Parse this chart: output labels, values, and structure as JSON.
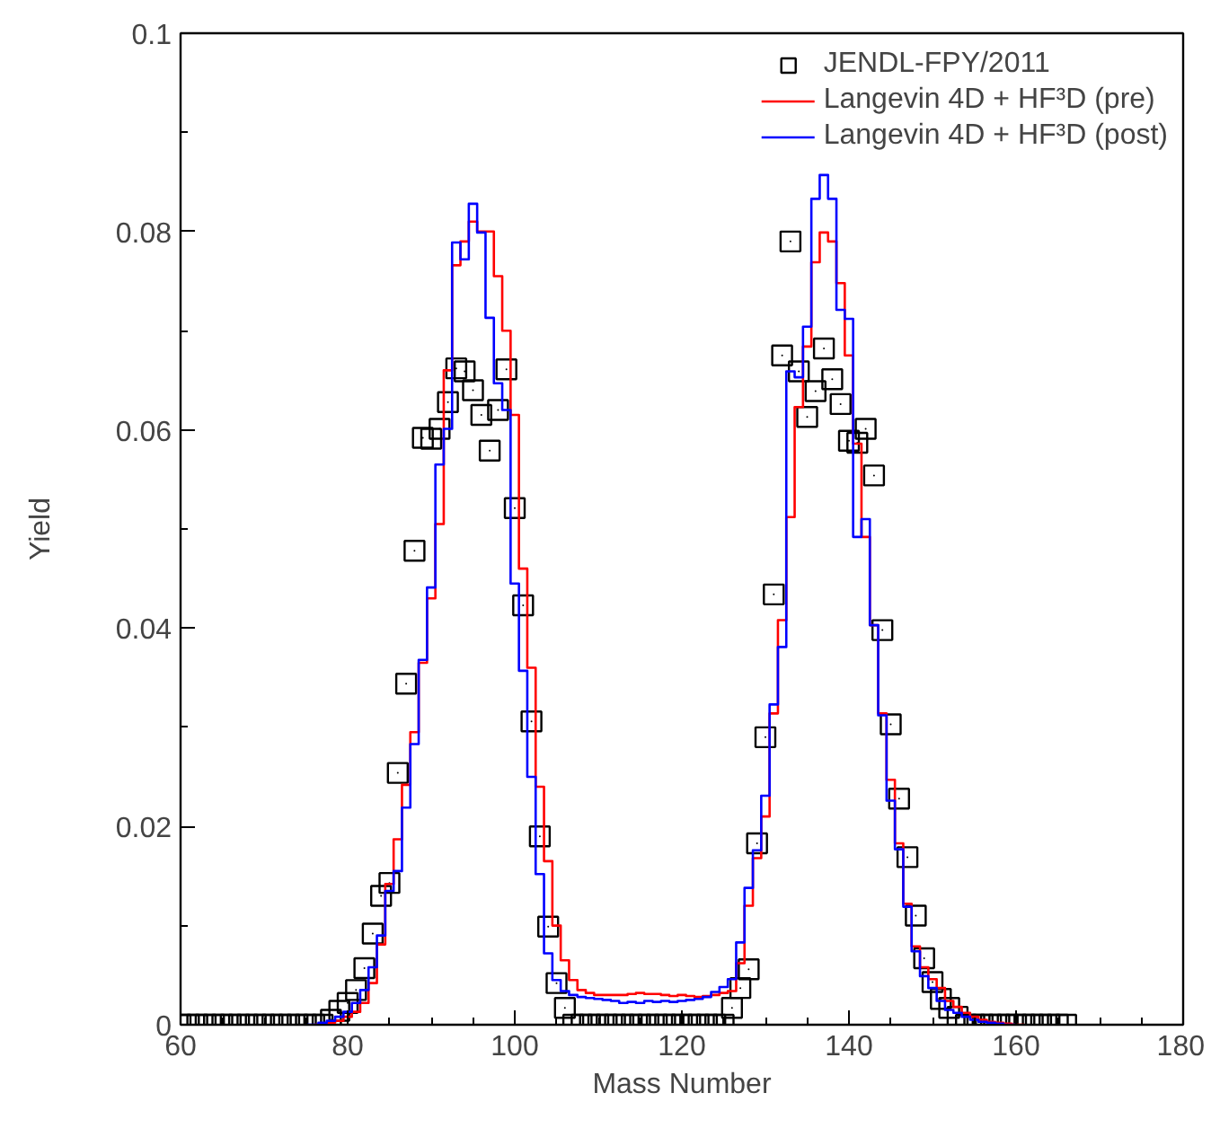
{
  "chart_data": {
    "type": "step",
    "xlabel": "Mass Number",
    "ylabel": "Yield",
    "xlim": [
      60,
      180
    ],
    "ylim": [
      0,
      0.1
    ],
    "xticks": [
      60,
      80,
      100,
      120,
      140,
      160,
      180
    ],
    "yticks": [
      0,
      0.02,
      0.04,
      0.06,
      0.08,
      0.1
    ],
    "grid": false,
    "legend": "top right",
    "series": [
      {
        "name": "JENDL-FPY/2011",
        "type": "scatter",
        "marker": "square",
        "color": "#000000",
        "x": [
          60,
          61,
          62,
          63,
          64,
          65,
          66,
          67,
          68,
          69,
          70,
          71,
          72,
          73,
          74,
          75,
          76,
          77,
          78,
          79,
          80,
          81,
          82,
          83,
          84,
          85,
          86,
          87,
          88,
          89,
          90,
          91,
          92,
          93,
          94,
          95,
          96,
          97,
          98,
          99,
          100,
          101,
          102,
          103,
          104,
          105,
          106,
          107,
          108,
          109,
          110,
          111,
          112,
          113,
          114,
          115,
          116,
          117,
          118,
          119,
          120,
          121,
          122,
          123,
          124,
          125,
          126,
          127,
          128,
          129,
          130,
          131,
          132,
          133,
          134,
          135,
          136,
          137,
          138,
          139,
          140,
          141,
          142,
          143,
          144,
          145,
          146,
          147,
          148,
          149,
          150,
          151,
          152,
          153,
          154,
          155,
          156,
          157,
          158,
          159,
          160,
          161,
          162,
          163,
          164,
          165,
          166
        ],
        "values": [
          0,
          0,
          0,
          0,
          0,
          0,
          0,
          0,
          0,
          0,
          0,
          0,
          0,
          0,
          0,
          0,
          0,
          0,
          0.0005,
          0.0014,
          0.0022,
          0.0035,
          0.0057,
          0.0092,
          0.013,
          0.0143,
          0.0254,
          0.0344,
          0.0478,
          0.0592,
          0.0591,
          0.0601,
          0.0628,
          0.0662,
          0.0659,
          0.064,
          0.0615,
          0.0579,
          0.062,
          0.0661,
          0.0521,
          0.0423,
          0.0306,
          0.019,
          0.0099,
          0.0042,
          0.0017,
          0,
          0,
          0,
          0,
          0,
          0,
          0,
          0,
          0,
          0,
          0,
          0,
          0,
          0,
          0,
          0,
          0,
          0,
          0,
          0.0017,
          0.0037,
          0.0056,
          0.0183,
          0.029,
          0.0434,
          0.0675,
          0.079,
          0.0659,
          0.0613,
          0.0639,
          0.0682,
          0.0651,
          0.0626,
          0.0589,
          0.0587,
          0.0601,
          0.0554,
          0.0398,
          0.0303,
          0.0228,
          0.0169,
          0.011,
          0.0067,
          0.0043,
          0.0026,
          0.0017,
          0.0008,
          0,
          0,
          0,
          0,
          0,
          0,
          0,
          0,
          0,
          0,
          0,
          0,
          0
        ]
      },
      {
        "name": "Langevin 4D + HF³D (pre)",
        "color": "#ff0000",
        "x": [
          76,
          77,
          78,
          79,
          80,
          81,
          82,
          83,
          84,
          85,
          86,
          87,
          88,
          89,
          90,
          91,
          92,
          93,
          94,
          95,
          96,
          97,
          98,
          99,
          100,
          101,
          102,
          103,
          104,
          105,
          106,
          107,
          108,
          109,
          110,
          111,
          112,
          113,
          114,
          115,
          116,
          117,
          118,
          119,
          120,
          121,
          122,
          123,
          124,
          125,
          126,
          127,
          128,
          129,
          130,
          131,
          132,
          133,
          134,
          135,
          136,
          137,
          138,
          139,
          140,
          141,
          142,
          143,
          144,
          145,
          146,
          147,
          148,
          149,
          150,
          151,
          152,
          153,
          154,
          155,
          156,
          157,
          158,
          159,
          160,
          161
        ],
        "values": [
          0,
          0,
          0.0002,
          0.0004,
          0.0008,
          0.0013,
          0.0022,
          0.0042,
          0.0081,
          0.0142,
          0.0187,
          0.0242,
          0.0295,
          0.0365,
          0.043,
          0.0505,
          0.066,
          0.0766,
          0.079,
          0.081,
          0.08,
          0.08,
          0.0755,
          0.07,
          0.0615,
          0.046,
          0.036,
          0.024,
          0.0165,
          0.01,
          0.0065,
          0.0045,
          0.0035,
          0.0032,
          0.003,
          0.003,
          0.003,
          0.003,
          0.0031,
          0.0032,
          0.0031,
          0.0031,
          0.003,
          0.0029,
          0.003,
          0.0029,
          0.0028,
          0.0029,
          0.003,
          0.0032,
          0.0034,
          0.0062,
          0.012,
          0.0168,
          0.021,
          0.0314,
          0.0408,
          0.0512,
          0.0623,
          0.0684,
          0.0769,
          0.0799,
          0.079,
          0.0748,
          0.0675,
          0.0586,
          0.0492,
          0.0403,
          0.0314,
          0.0247,
          0.0183,
          0.0122,
          0.0079,
          0.0058,
          0.0046,
          0.0037,
          0.0024,
          0.0018,
          0.0012,
          0.0008,
          0.0005,
          0.0003,
          0.0002,
          0.0001,
          0,
          0
        ]
      },
      {
        "name": "Langevin 4D + HF³D (post)",
        "color": "#0000ff",
        "x": [
          75,
          76,
          77,
          78,
          79,
          80,
          81,
          82,
          83,
          84,
          85,
          86,
          87,
          88,
          89,
          90,
          91,
          92,
          93,
          94,
          95,
          96,
          97,
          98,
          99,
          100,
          101,
          102,
          103,
          104,
          105,
          106,
          107,
          108,
          109,
          110,
          111,
          112,
          113,
          114,
          115,
          116,
          117,
          118,
          119,
          120,
          121,
          122,
          123,
          124,
          125,
          126,
          127,
          128,
          129,
          130,
          131,
          132,
          133,
          134,
          135,
          136,
          137,
          138,
          139,
          140,
          141,
          142,
          143,
          144,
          145,
          146,
          147,
          148,
          149,
          150,
          151,
          152,
          153,
          154,
          155,
          156,
          157,
          158,
          159,
          160
        ],
        "values": [
          0,
          0,
          0.0002,
          0.0004,
          0.0008,
          0.0013,
          0.0022,
          0.0035,
          0.0058,
          0.009,
          0.0135,
          0.0155,
          0.0219,
          0.0283,
          0.0368,
          0.0441,
          0.0565,
          0.0601,
          0.0789,
          0.0772,
          0.0828,
          0.0799,
          0.0713,
          0.0647,
          0.062,
          0.0445,
          0.0357,
          0.025,
          0.0152,
          0.0072,
          0.0045,
          0.0034,
          0.003,
          0.0028,
          0.0027,
          0.0026,
          0.0025,
          0.0024,
          0.0022,
          0.0023,
          0.0022,
          0.0024,
          0.0023,
          0.0024,
          0.0023,
          0.0024,
          0.0025,
          0.0026,
          0.0028,
          0.0033,
          0.0038,
          0.0046,
          0.0083,
          0.0138,
          0.0176,
          0.0231,
          0.0323,
          0.0381,
          0.0659,
          0.0653,
          0.0704,
          0.0833,
          0.0857,
          0.0833,
          0.0721,
          0.0712,
          0.0492,
          0.051,
          0.0403,
          0.0312,
          0.0226,
          0.0177,
          0.0119,
          0.0074,
          0.0049,
          0.0037,
          0.0024,
          0.0015,
          0.0012,
          0.0008,
          0.0005,
          0.0003,
          0.0002,
          0.0001,
          0,
          0
        ]
      }
    ]
  }
}
